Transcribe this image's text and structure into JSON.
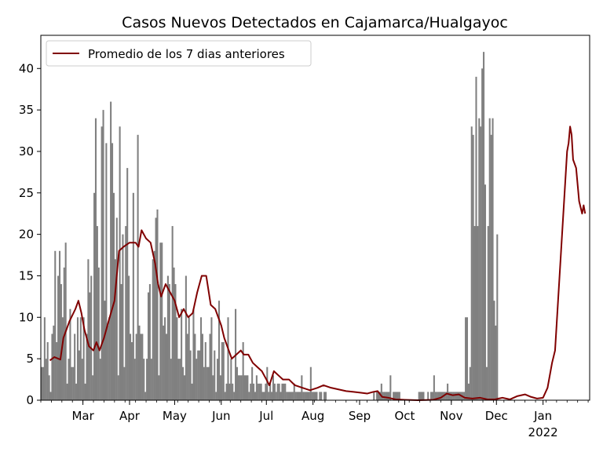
{
  "chart_data": {
    "type": "bar",
    "title": "Casos Nuevos Detectados en Cajamarca/Hualgayoc",
    "xlabel": "",
    "ylabel": "",
    "x_start": "2021-02-01",
    "x_end": "2022-01-31",
    "ylim": [
      0,
      44
    ],
    "grid": false,
    "legend_position": "top-left",
    "colors": {
      "bars": "#808080",
      "line": "#800000",
      "axes": "#000000"
    },
    "y_ticks": [
      0,
      5,
      10,
      15,
      20,
      25,
      30,
      35,
      40
    ],
    "x_ticks": [
      {
        "date": "2021-03-01",
        "label": "Mar"
      },
      {
        "date": "2021-04-01",
        "label": "Apr"
      },
      {
        "date": "2021-05-01",
        "label": "May"
      },
      {
        "date": "2021-06-01",
        "label": "Jun"
      },
      {
        "date": "2021-07-01",
        "label": "Jul"
      },
      {
        "date": "2021-08-01",
        "label": "Aug"
      },
      {
        "date": "2021-09-01",
        "label": "Sep"
      },
      {
        "date": "2021-10-01",
        "label": "Oct"
      },
      {
        "date": "2021-11-01",
        "label": "Nov"
      },
      {
        "date": "2021-12-01",
        "label": "Dec"
      },
      {
        "date": "2022-01-01",
        "label": "Jan"
      }
    ],
    "x_year_label": "2022",
    "series": [
      {
        "type": "bar",
        "name": "",
        "color": "#808080",
        "start_date": "2021-02-01",
        "values": [
          4,
          4,
          10,
          5,
          7,
          3,
          1,
          8,
          9,
          18,
          7,
          15,
          18,
          14,
          10,
          16,
          19,
          2,
          5,
          11,
          4,
          4,
          8,
          2,
          10,
          6,
          10,
          5,
          10,
          2,
          8,
          17,
          13,
          15,
          3,
          25,
          34,
          21,
          16,
          5,
          33,
          35,
          12,
          31,
          9,
          10,
          36,
          31,
          25,
          17,
          22,
          3,
          33,
          14,
          20,
          4,
          21,
          28,
          15,
          8,
          7,
          25,
          5,
          8,
          32,
          9,
          8,
          8,
          5,
          1,
          5,
          13,
          14,
          5,
          17,
          18,
          22,
          23,
          3,
          19,
          19,
          9,
          10,
          8,
          15,
          14,
          5,
          21,
          16,
          14,
          10,
          5,
          5,
          11,
          4,
          3,
          15,
          8,
          10,
          6,
          2,
          11,
          8,
          5,
          6,
          6,
          10,
          8,
          4,
          7,
          4,
          4,
          8,
          10,
          3,
          6,
          1,
          5,
          12,
          3,
          7,
          7,
          1,
          2,
          10,
          2,
          5,
          2,
          1,
          11,
          4,
          3,
          3,
          3,
          7,
          3,
          3,
          3,
          1,
          2,
          4,
          2,
          1,
          3,
          2,
          2,
          2,
          1,
          1,
          2,
          4,
          1,
          2,
          1,
          3,
          2,
          1,
          2,
          2,
          1,
          2,
          2,
          2,
          1,
          1,
          1,
          1,
          1,
          2,
          1,
          1,
          1,
          1,
          3,
          1,
          1,
          1,
          1,
          1,
          4,
          1,
          1,
          1,
          1,
          0,
          1,
          1,
          0,
          1,
          1,
          0,
          0,
          0,
          0,
          0,
          0,
          0,
          0,
          0,
          0,
          0,
          0,
          0,
          0,
          0,
          0,
          0,
          0,
          0,
          0,
          0,
          0,
          0,
          0,
          0,
          0,
          0,
          0,
          0,
          0,
          0,
          1,
          0,
          1,
          1,
          1,
          2,
          1,
          1,
          1,
          1,
          1,
          3,
          0,
          1,
          1,
          1,
          1,
          1,
          0,
          0,
          0,
          0,
          0,
          0,
          0,
          0,
          0,
          0,
          0,
          0,
          1,
          1,
          1,
          1,
          0,
          0,
          1,
          0,
          1,
          1,
          3,
          1,
          1,
          1,
          1,
          1,
          1,
          1,
          1,
          2,
          1,
          1,
          1,
          1,
          1,
          1,
          1,
          1,
          1,
          1,
          1,
          10,
          10,
          2,
          4,
          33,
          32,
          21,
          39,
          21,
          34,
          33,
          40,
          42,
          26,
          4,
          21,
          34,
          32,
          34,
          12,
          9,
          20
        ]
      },
      {
        "type": "line",
        "name": "Promedio de los 7 dias anteriores",
        "color": "#800000",
        "points": [
          [
            "2021-02-07",
            4.8
          ],
          [
            "2021-02-10",
            5.2
          ],
          [
            "2021-02-14",
            4.9
          ],
          [
            "2021-02-16",
            7.5
          ],
          [
            "2021-02-20",
            9.5
          ],
          [
            "2021-02-24",
            11.0
          ],
          [
            "2021-02-26",
            12.0
          ],
          [
            "2021-02-28",
            10.5
          ],
          [
            "2021-03-02",
            8.5
          ],
          [
            "2021-03-05",
            6.5
          ],
          [
            "2021-03-08",
            6.0
          ],
          [
            "2021-03-10",
            7.0
          ],
          [
            "2021-03-12",
            6.0
          ],
          [
            "2021-03-15",
            7.5
          ],
          [
            "2021-03-18",
            9.5
          ],
          [
            "2021-03-22",
            12.0
          ],
          [
            "2021-03-25",
            18.0
          ],
          [
            "2021-03-28",
            18.5
          ],
          [
            "2021-04-01",
            19.0
          ],
          [
            "2021-04-05",
            19.0
          ],
          [
            "2021-04-07",
            18.5
          ],
          [
            "2021-04-09",
            20.5
          ],
          [
            "2021-04-12",
            19.5
          ],
          [
            "2021-04-15",
            19.0
          ],
          [
            "2021-04-18",
            16.5
          ],
          [
            "2021-04-20",
            14.0
          ],
          [
            "2021-04-22",
            12.5
          ],
          [
            "2021-04-25",
            14.0
          ],
          [
            "2021-04-28",
            13.0
          ],
          [
            "2021-05-01",
            12.0
          ],
          [
            "2021-05-04",
            10.0
          ],
          [
            "2021-05-07",
            11.0
          ],
          [
            "2021-05-10",
            10.0
          ],
          [
            "2021-05-13",
            10.5
          ],
          [
            "2021-05-16",
            13.0
          ],
          [
            "2021-05-19",
            15.0
          ],
          [
            "2021-05-22",
            15.0
          ],
          [
            "2021-05-25",
            11.5
          ],
          [
            "2021-05-28",
            11.0
          ],
          [
            "2021-06-01",
            9.0
          ],
          [
            "2021-06-03",
            7.5
          ],
          [
            "2021-06-05",
            6.5
          ],
          [
            "2021-06-08",
            5.0
          ],
          [
            "2021-06-11",
            5.5
          ],
          [
            "2021-06-14",
            6.0
          ],
          [
            "2021-06-16",
            5.5
          ],
          [
            "2021-06-19",
            5.5
          ],
          [
            "2021-06-22",
            4.5
          ],
          [
            "2021-06-25",
            4.0
          ],
          [
            "2021-06-28",
            3.5
          ],
          [
            "2021-07-01",
            2.5
          ],
          [
            "2021-07-03",
            1.8
          ],
          [
            "2021-07-06",
            3.5
          ],
          [
            "2021-07-09",
            3.0
          ],
          [
            "2021-07-12",
            2.5
          ],
          [
            "2021-07-16",
            2.5
          ],
          [
            "2021-07-20",
            1.8
          ],
          [
            "2021-07-25",
            1.5
          ],
          [
            "2021-07-30",
            1.2
          ],
          [
            "2021-08-04",
            1.5
          ],
          [
            "2021-08-08",
            1.8
          ],
          [
            "2021-08-13",
            1.5
          ],
          [
            "2021-08-18",
            1.3
          ],
          [
            "2021-08-23",
            1.1
          ],
          [
            "2021-08-28",
            1.0
          ],
          [
            "2021-09-02",
            0.9
          ],
          [
            "2021-09-06",
            0.8
          ],
          [
            "2021-09-10",
            1.0
          ],
          [
            "2021-09-13",
            1.1
          ],
          [
            "2021-09-16",
            0.4
          ],
          [
            "2021-09-20",
            0.3
          ],
          [
            "2021-09-25",
            0.1
          ],
          [
            "2021-10-01",
            0.05
          ],
          [
            "2021-10-10",
            0.0
          ],
          [
            "2021-10-20",
            0.05
          ],
          [
            "2021-10-25",
            0.3
          ],
          [
            "2021-10-29",
            0.8
          ],
          [
            "2021-11-02",
            0.6
          ],
          [
            "2021-11-06",
            0.7
          ],
          [
            "2021-11-10",
            0.3
          ],
          [
            "2021-11-15",
            0.2
          ],
          [
            "2021-11-20",
            0.3
          ],
          [
            "2021-11-25",
            0.1
          ],
          [
            "2021-11-30",
            0.1
          ],
          [
            "2021-12-05",
            0.3
          ],
          [
            "2021-12-10",
            0.1
          ],
          [
            "2021-12-15",
            0.5
          ],
          [
            "2021-12-20",
            0.7
          ],
          [
            "2021-12-24",
            0.4
          ],
          [
            "2021-12-28",
            0.2
          ],
          [
            "2022-01-01",
            0.3
          ],
          [
            "2022-01-04",
            1.5
          ],
          [
            "2022-01-07",
            4.5
          ],
          [
            "2022-01-09",
            6.0
          ],
          [
            "2022-01-11",
            12.0
          ],
          [
            "2022-01-13",
            18.0
          ],
          [
            "2022-01-15",
            24.0
          ],
          [
            "2022-01-17",
            30.0
          ],
          [
            "2022-01-18",
            31.0
          ],
          [
            "2022-01-19",
            33.0
          ],
          [
            "2022-01-20",
            32.0
          ],
          [
            "2022-01-21",
            29.0
          ],
          [
            "2022-01-23",
            28.0
          ],
          [
            "2022-01-25",
            24.0
          ],
          [
            "2022-01-27",
            22.5
          ],
          [
            "2022-01-28",
            23.5
          ],
          [
            "2022-01-29",
            22.5
          ]
        ]
      }
    ]
  }
}
